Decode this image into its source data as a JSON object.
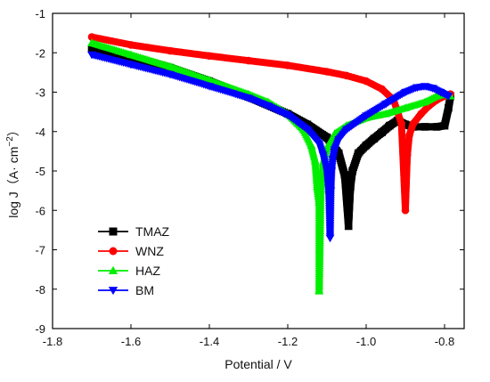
{
  "chart_data": {
    "type": "line",
    "xlabel": "Potential / V",
    "ylabel_main": "log J（A· cm",
    "ylabel_sup": "−2",
    "ylabel_close": "）",
    "xlim": [
      -1.8,
      -0.75
    ],
    "ylim": [
      -9,
      -1
    ],
    "x_ticks": [
      "-1.8",
      "-1.6",
      "-1.4",
      "-1.2",
      "-1.0",
      "-0.8"
    ],
    "y_ticks": [
      "-1",
      "-2",
      "-3",
      "-4",
      "-5",
      "-6",
      "-7",
      "-8",
      "-9"
    ],
    "legend_position": "lower-left",
    "series": [
      {
        "name": "TMAZ",
        "color": "#000000",
        "marker": "square",
        "x": [
          -1.7,
          -1.6,
          -1.5,
          -1.4,
          -1.3,
          -1.2,
          -1.15,
          -1.1,
          -1.07,
          -1.055,
          -1.045,
          -1.04,
          -1.035,
          -1.02,
          -1.0,
          -0.98,
          -0.96,
          -0.94,
          -0.92,
          -0.9,
          -0.88,
          -0.85,
          -0.82,
          -0.8,
          -0.79,
          -0.785
        ],
        "y": [
          -1.9,
          -2.1,
          -2.38,
          -2.72,
          -3.12,
          -3.55,
          -3.82,
          -4.15,
          -4.55,
          -5.1,
          -6.4,
          -5.4,
          -5.0,
          -4.55,
          -4.35,
          -4.18,
          -4.02,
          -3.85,
          -3.72,
          -3.82,
          -3.88,
          -3.88,
          -3.88,
          -3.85,
          -3.4,
          -3.1
        ]
      },
      {
        "name": "WNZ",
        "color": "#ff0000",
        "marker": "circle",
        "x": [
          -1.7,
          -1.6,
          -1.5,
          -1.4,
          -1.3,
          -1.2,
          -1.1,
          -1.05,
          -1.0,
          -0.96,
          -0.93,
          -0.91,
          -0.9,
          -0.895,
          -0.89,
          -0.88,
          -0.86,
          -0.84,
          -0.82,
          -0.8,
          -0.785
        ],
        "y": [
          -1.6,
          -1.8,
          -1.95,
          -2.08,
          -2.2,
          -2.32,
          -2.48,
          -2.58,
          -2.72,
          -2.92,
          -3.2,
          -3.8,
          -6.0,
          -4.6,
          -4.1,
          -3.8,
          -3.55,
          -3.35,
          -3.2,
          -3.1,
          -3.05
        ]
      },
      {
        "name": "HAZ",
        "color": "#00ee00",
        "marker": "triangle-up",
        "x": [
          -1.7,
          -1.6,
          -1.5,
          -1.4,
          -1.3,
          -1.25,
          -1.2,
          -1.16,
          -1.14,
          -1.13,
          -1.125,
          -1.12,
          -1.12,
          -1.115,
          -1.11,
          -1.1,
          -1.08,
          -1.05,
          -1.0,
          -0.95,
          -0.9,
          -0.85,
          -0.82,
          -0.8,
          -0.785
        ],
        "y": [
          -1.75,
          -2.05,
          -2.35,
          -2.7,
          -3.05,
          -3.25,
          -3.55,
          -3.95,
          -4.35,
          -4.75,
          -5.4,
          -5.8,
          -8.05,
          -5.3,
          -4.8,
          -4.4,
          -4.05,
          -3.85,
          -3.65,
          -3.55,
          -3.4,
          -3.25,
          -3.1,
          -3.05,
          -3.1
        ]
      },
      {
        "name": "BM",
        "color": "#0000ff",
        "marker": "triangle-down",
        "x": [
          -1.7,
          -1.6,
          -1.5,
          -1.4,
          -1.3,
          -1.25,
          -1.2,
          -1.15,
          -1.12,
          -1.11,
          -1.1,
          -1.095,
          -1.092,
          -1.09,
          -1.088,
          -1.085,
          -1.08,
          -1.07,
          -1.05,
          -1.0,
          -0.95,
          -0.9,
          -0.87,
          -0.85,
          -0.83,
          -0.81,
          -0.79
        ],
        "y": [
          -2.05,
          -2.3,
          -2.55,
          -2.85,
          -3.15,
          -3.35,
          -3.58,
          -3.95,
          -4.3,
          -4.6,
          -5.0,
          -5.6,
          -6.7,
          -5.5,
          -5.0,
          -4.7,
          -4.45,
          -4.2,
          -3.95,
          -3.6,
          -3.3,
          -3.0,
          -2.88,
          -2.85,
          -2.9,
          -3.0,
          -3.1
        ]
      }
    ]
  }
}
